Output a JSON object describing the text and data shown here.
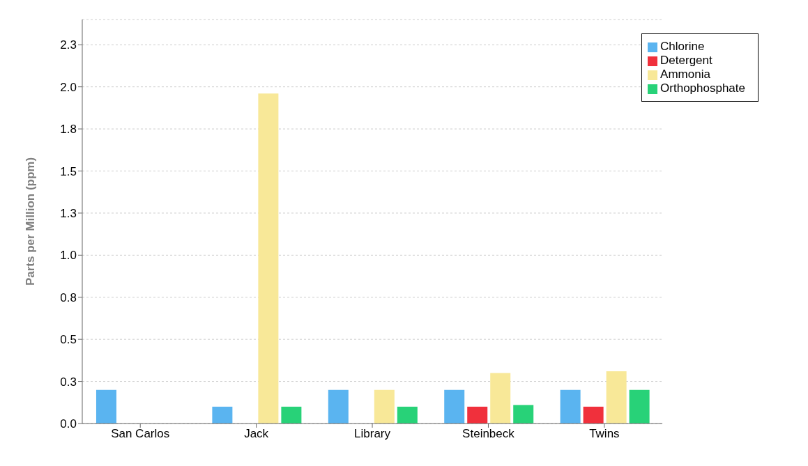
{
  "chart_data": {
    "type": "bar",
    "ylabel": "Parts per Million (ppm)",
    "categories": [
      "San Carlos",
      "Jack",
      "Library",
      "Steinbeck",
      "Twins"
    ],
    "series": [
      {
        "name": "Chlorine",
        "color": "#5ab4f0",
        "values": [
          0.2,
          0.1,
          0.2,
          0.2,
          0.2
        ]
      },
      {
        "name": "Detergent",
        "color": "#f0303c",
        "values": [
          0,
          0,
          0,
          0.1,
          0.1
        ]
      },
      {
        "name": "Ammonia",
        "color": "#f8e898",
        "values": [
          null,
          1.96,
          0.2,
          0.3,
          0.31
        ]
      },
      {
        "name": "Orthophosphate",
        "color": "#28d278",
        "values": [
          null,
          0.1,
          0.1,
          0.11,
          0.2
        ]
      }
    ],
    "ylim": [
      0,
      2.4
    ],
    "yticks": [
      {
        "value": 0,
        "label": "0.0"
      },
      {
        "value": 0.25,
        "label": "0.3"
      },
      {
        "value": 0.5,
        "label": "0.5"
      },
      {
        "value": 0.75,
        "label": "0.8"
      },
      {
        "value": 1,
        "label": "1.0"
      },
      {
        "value": 1.25,
        "label": "1.3"
      },
      {
        "value": 1.5,
        "label": "1.5"
      },
      {
        "value": 1.75,
        "label": "1.8"
      },
      {
        "value": 2,
        "label": "2.0"
      },
      {
        "value": 2.25,
        "label": "2.3"
      }
    ],
    "grid": "y",
    "legend": "top right"
  }
}
